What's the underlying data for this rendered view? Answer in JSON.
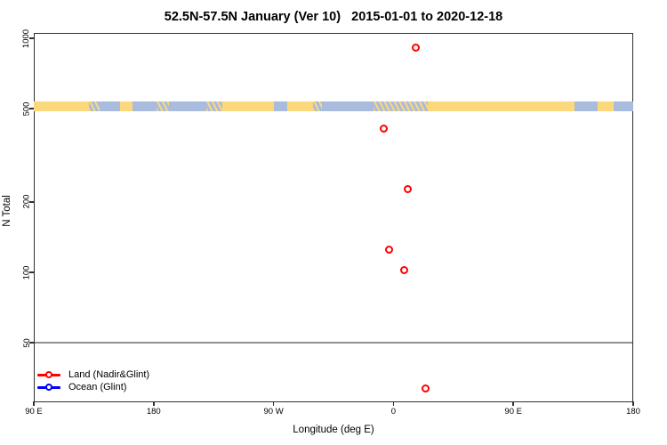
{
  "chart_data": {
    "type": "scatter",
    "title": "52.5N-57.5N January (Ver 10)   2015-01-01 to 2020-12-18",
    "xlabel": "Longitude (deg E)",
    "ylabel": "N Total",
    "x_axis": {
      "unit": "degrees longitude east (axis wraps, spanning 450 degrees)",
      "domain": [
        -270,
        180
      ],
      "ticks": [
        {
          "x": -270,
          "label": "90 E"
        },
        {
          "x": -180,
          "label": "180"
        },
        {
          "x": -90,
          "label": "90 W"
        },
        {
          "x": 0,
          "label": "0"
        },
        {
          "x": 90,
          "label": "90 E"
        },
        {
          "x": 180,
          "label": "180"
        }
      ]
    },
    "y_axis": {
      "scale": "log",
      "domain": [
        27,
        1060
      ],
      "ticks": [
        1000,
        500,
        200,
        100,
        50
      ]
    },
    "reference_line_y": 50,
    "series": [
      {
        "name": "Land (Nadir&Glint)",
        "color": "#ff0000",
        "marker": "open-circle",
        "points": [
          {
            "lon": 17,
            "n": 915
          },
          {
            "lon": -7,
            "n": 410
          },
          {
            "lon": 11,
            "n": 227
          },
          {
            "lon": -3,
            "n": 125
          },
          {
            "lon": 8,
            "n": 102
          },
          {
            "lon": 24,
            "n": 32
          }
        ]
      },
      {
        "name": "Ocean (Glint)",
        "color": "#0000ff",
        "marker": "open-circle",
        "points": []
      }
    ],
    "map_band": {
      "description": "world coastline strip for 52.5N-57.5N drawn across the plot near N=500",
      "n_center": 500,
      "land_color": "#fcd87c",
      "ocean_color": "#a9bcdd",
      "segments": [
        {
          "from": 0.0,
          "to": 0.092,
          "type": "land"
        },
        {
          "from": 0.092,
          "to": 0.11,
          "type": "mix"
        },
        {
          "from": 0.11,
          "to": 0.144,
          "type": "ocean"
        },
        {
          "from": 0.144,
          "to": 0.165,
          "type": "land"
        },
        {
          "from": 0.165,
          "to": 0.205,
          "type": "ocean"
        },
        {
          "from": 0.205,
          "to": 0.226,
          "type": "mix"
        },
        {
          "from": 0.226,
          "to": 0.288,
          "type": "ocean"
        },
        {
          "from": 0.288,
          "to": 0.315,
          "type": "mix"
        },
        {
          "from": 0.315,
          "to": 0.401,
          "type": "land"
        },
        {
          "from": 0.401,
          "to": 0.423,
          "type": "ocean"
        },
        {
          "from": 0.423,
          "to": 0.466,
          "type": "land"
        },
        {
          "from": 0.466,
          "to": 0.481,
          "type": "mix"
        },
        {
          "from": 0.481,
          "to": 0.567,
          "type": "ocean"
        },
        {
          "from": 0.567,
          "to": 0.657,
          "type": "mix"
        },
        {
          "from": 0.657,
          "to": 0.902,
          "type": "land"
        },
        {
          "from": 0.902,
          "to": 0.941,
          "type": "ocean"
        },
        {
          "from": 0.941,
          "to": 0.967,
          "type": "land"
        },
        {
          "from": 0.967,
          "to": 1.0,
          "type": "ocean"
        }
      ]
    },
    "legend_position": "bottom-left"
  },
  "legend": {
    "items": [
      {
        "label": "Land (Nadir&Glint)",
        "color": "#ff0000"
      },
      {
        "label": "Ocean (Glint)",
        "color": "#0000ff"
      }
    ]
  }
}
